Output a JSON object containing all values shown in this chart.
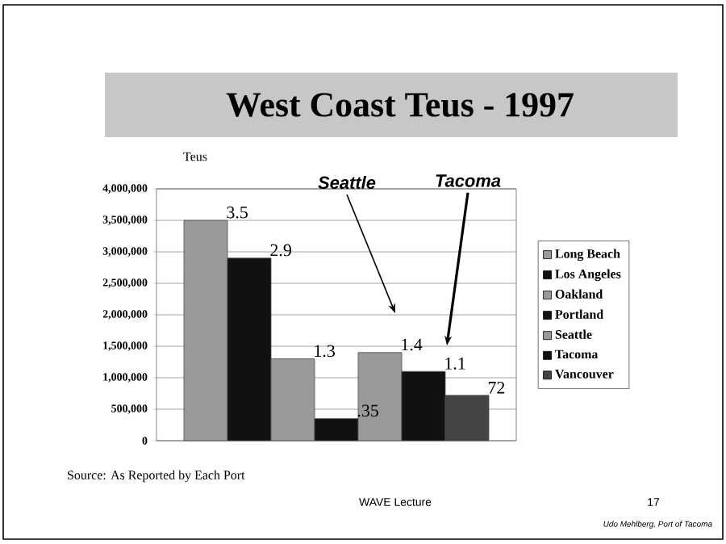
{
  "chart_data": {
    "type": "bar",
    "title": "West Coast Teus - 1997",
    "ylabel": "Teus",
    "categories": [
      null
    ],
    "series": [
      {
        "name": "Long Beach",
        "color": "#9a9a9a",
        "values": [
          3500000
        ]
      },
      {
        "name": "Los Angeles",
        "color": "#111111",
        "values": [
          2900000
        ]
      },
      {
        "name": "Oakland",
        "color": "#9a9a9a",
        "values": [
          1300000
        ]
      },
      {
        "name": "Portland",
        "color": "#111111",
        "values": [
          350000
        ]
      },
      {
        "name": "Seattle",
        "color": "#9a9a9a",
        "values": [
          1400000
        ]
      },
      {
        "name": "Tacoma",
        "color": "#111111",
        "values": [
          1100000
        ]
      },
      {
        "name": "Vancouver",
        "color": "#444444",
        "values": [
          720000
        ]
      }
    ],
    "ylim": [
      0,
      4000000
    ],
    "yticks": [
      {
        "value": 0,
        "label": "0"
      },
      {
        "value": 500000,
        "label": "500,000"
      },
      {
        "value": 1000000,
        "label": "1,000,000"
      },
      {
        "value": 1500000,
        "label": "1,500,000"
      },
      {
        "value": 2000000,
        "label": "2,000,000"
      },
      {
        "value": 2500000,
        "label": "2,500,000"
      },
      {
        "value": 3000000,
        "label": "3,000,000"
      },
      {
        "value": 3500000,
        "label": "3,500,000"
      },
      {
        "value": 4000000,
        "label": "4,000,000"
      }
    ],
    "grid": "y",
    "legend": "right",
    "annotations": [
      "Seattle",
      "Tacoma",
      "3.5",
      "2.9",
      "1.3",
      ".35",
      "1.4",
      "1.1",
      "72",
      "Source: As Reported by Each Port",
      "WAVE Lecture",
      "17",
      "Udo Mehlberg, Port of Tacoma"
    ]
  }
}
